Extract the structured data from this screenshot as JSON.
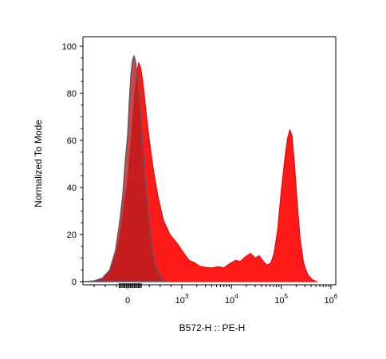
{
  "chart_data": {
    "type": "area",
    "title": "",
    "xlabel": "B572-H :: PE-H",
    "ylabel": "Normalized To Mode",
    "x_scale": "biexponential",
    "xlim": [
      -800,
      1000000
    ],
    "ylim": [
      0,
      100
    ],
    "grid": false,
    "y_ticks": [
      0,
      20,
      40,
      60,
      80,
      100
    ],
    "x_ticks": [
      {
        "base": "0",
        "exp": ""
      },
      {
        "base": "10",
        "exp": "3"
      },
      {
        "base": "10",
        "exp": "4"
      },
      {
        "base": "10",
        "exp": "5"
      },
      {
        "base": "10",
        "exp": "6"
      }
    ],
    "series": [
      {
        "color": "#ff1a1a",
        "fill_opacity": 1.0,
        "stroke": "#e31010",
        "points": [
          [
            -800,
            0
          ],
          [
            -600,
            0.3
          ],
          [
            -450,
            1.5
          ],
          [
            -320,
            4
          ],
          [
            -200,
            12
          ],
          [
            -120,
            22
          ],
          [
            -50,
            34
          ],
          [
            0,
            42
          ],
          [
            40,
            52
          ],
          [
            80,
            63
          ],
          [
            120,
            76
          ],
          [
            160,
            86
          ],
          [
            200,
            93
          ],
          [
            240,
            91
          ],
          [
            290,
            83
          ],
          [
            340,
            72
          ],
          [
            400,
            60
          ],
          [
            470,
            48
          ],
          [
            560,
            36
          ],
          [
            660,
            26
          ],
          [
            780,
            20
          ],
          [
            920,
            16
          ],
          [
            1100,
            12
          ],
          [
            1400,
            9
          ],
          [
            1800,
            8
          ],
          [
            2300,
            6.5
          ],
          [
            3000,
            6
          ],
          [
            4000,
            5.8
          ],
          [
            5500,
            6.3
          ],
          [
            7000,
            5.8
          ],
          [
            9000,
            7.5
          ],
          [
            12000,
            9
          ],
          [
            15000,
            8.5
          ],
          [
            19000,
            10.5
          ],
          [
            24000,
            12
          ],
          [
            30000,
            10
          ],
          [
            36000,
            11
          ],
          [
            44000,
            8.5
          ],
          [
            52000,
            7
          ],
          [
            62000,
            8
          ],
          [
            72000,
            12
          ],
          [
            85000,
            22
          ],
          [
            100000,
            38
          ],
          [
            118000,
            52
          ],
          [
            135000,
            61
          ],
          [
            150000,
            64.5
          ],
          [
            165000,
            62
          ],
          [
            185000,
            50
          ],
          [
            210000,
            33
          ],
          [
            240000,
            18
          ],
          [
            280000,
            8
          ],
          [
            340000,
            3
          ],
          [
            420000,
            0.8
          ],
          [
            520000,
            0
          ]
        ]
      },
      {
        "color": "#b92020",
        "fill_opacity": 0.82,
        "stroke": "#555a6a",
        "points": [
          [
            -800,
            0
          ],
          [
            -600,
            0.3
          ],
          [
            -450,
            1.5
          ],
          [
            -320,
            5
          ],
          [
            -220,
            13
          ],
          [
            -150,
            24
          ],
          [
            -90,
            36
          ],
          [
            -40,
            52
          ],
          [
            0,
            62
          ],
          [
            30,
            76
          ],
          [
            60,
            88
          ],
          [
            90,
            94
          ],
          [
            120,
            96
          ],
          [
            150,
            93
          ],
          [
            180,
            87
          ],
          [
            210,
            80
          ],
          [
            260,
            65
          ],
          [
            310,
            48
          ],
          [
            370,
            32
          ],
          [
            430,
            18
          ],
          [
            500,
            8
          ],
          [
            580,
            3
          ],
          [
            650,
            0.5
          ],
          [
            720,
            0
          ]
        ]
      }
    ]
  }
}
